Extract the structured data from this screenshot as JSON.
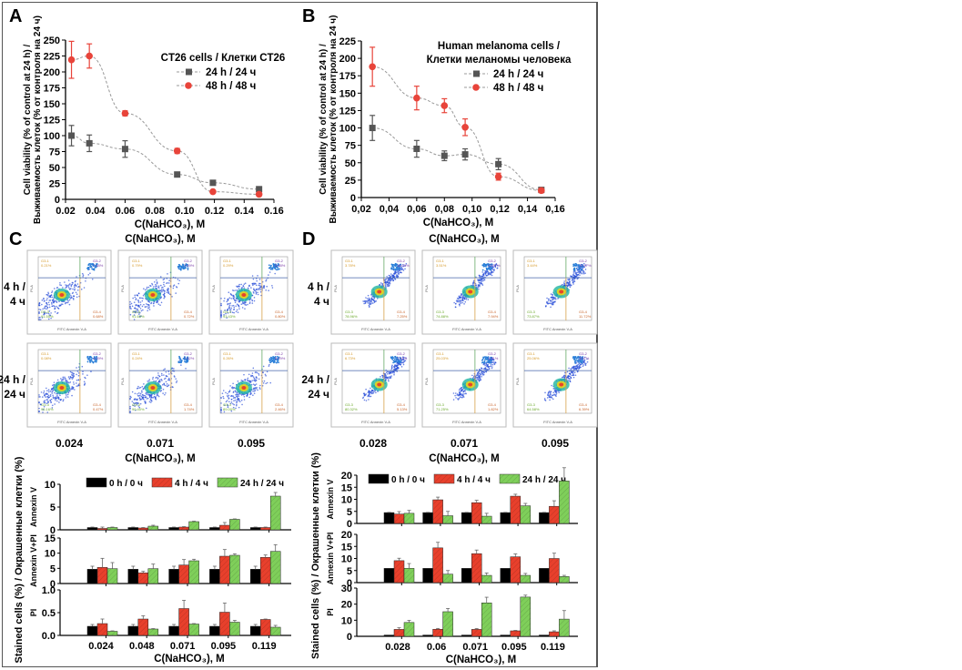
{
  "colors": {
    "series_24h": "#555555",
    "series_48h": "#e8443a",
    "bar_0h": "#000000",
    "bar_4h": "#e8402c",
    "bar_24h": "#7fcf5a",
    "frame": "#555555"
  },
  "chart_data": [
    {
      "id": "A",
      "panel": "A",
      "type": "line",
      "title": "CT26 cells / Клетки CT26",
      "xlabel": "C(NaHCO₃), M",
      "ylabel_line1": "Cell viability (% of control at 24 h) /",
      "ylabel_line2": "Выживаемость клеток (% от контроля на 24 ч)",
      "xlim": [
        0.02,
        0.16
      ],
      "ylim": [
        0,
        250
      ],
      "xticks": [
        0.02,
        0.04,
        0.06,
        0.08,
        0.1,
        0.12,
        0.14,
        0.16
      ],
      "xtick_labels": [
        "0.02",
        "0.04",
        "0.06",
        "0.08",
        "0.10",
        "0.12",
        "0.14",
        "0.16"
      ],
      "yticks": [
        0,
        25,
        50,
        75,
        100,
        125,
        150,
        175,
        200,
        225,
        250
      ],
      "legend_position": "top-right",
      "series": [
        {
          "name": "24 h / 24 ч",
          "marker": "square",
          "x": [
            0.024,
            0.036,
            0.06,
            0.095,
            0.119,
            0.15
          ],
          "y": [
            100,
            88,
            79,
            39,
            26,
            16
          ],
          "err": [
            16,
            13,
            13,
            2,
            2,
            3
          ]
        },
        {
          "name": "48 h / 48 ч",
          "marker": "circle",
          "x": [
            0.024,
            0.036,
            0.06,
            0.095,
            0.119,
            0.15
          ],
          "y": [
            219,
            225,
            135,
            76,
            12,
            8
          ],
          "err": [
            29,
            19,
            4,
            4,
            2,
            2
          ]
        }
      ]
    },
    {
      "id": "B",
      "panel": "B",
      "type": "line",
      "title": "Human melanoma cells /",
      "title2": "Клетки меланомы человека",
      "xlabel": "C(NaHCO₃), M",
      "ylabel_line1": "Cell viability (% of control at 24 h) /",
      "ylabel_line2": "Выживаемость клеток (% от контроля на 24 ч)",
      "xlim": [
        0.02,
        0.16
      ],
      "ylim": [
        0,
        225
      ],
      "xticks": [
        0.02,
        0.04,
        0.06,
        0.08,
        0.1,
        0.12,
        0.14,
        0.16
      ],
      "xtick_labels": [
        "0,02",
        "0,04",
        "0,06",
        "0,08",
        "0,10",
        "0,12",
        "0,14",
        "0,16"
      ],
      "yticks": [
        0,
        25,
        50,
        75,
        100,
        125,
        150,
        175,
        200,
        225
      ],
      "legend_position": "top-right",
      "series": [
        {
          "name": "24 h / 24 ч",
          "marker": "square",
          "x": [
            0.028,
            0.06,
            0.08,
            0.095,
            0.119,
            0.15
          ],
          "y": [
            100,
            70,
            60,
            62,
            48,
            11
          ],
          "err": [
            18,
            12,
            7,
            8,
            8,
            3
          ]
        },
        {
          "name": "48 h / 48 ч",
          "marker": "circle",
          "x": [
            0.028,
            0.06,
            0.08,
            0.095,
            0.119,
            0.15
          ],
          "y": [
            188,
            143,
            132,
            101,
            30,
            10
          ],
          "err": [
            28,
            17,
            10,
            12,
            5,
            3
          ]
        }
      ]
    },
    {
      "id": "E",
      "panel": "C-bars",
      "type": "bar",
      "xlabel": "C(NaHCO₃), M",
      "ylabel": "Stained cells (%) / Окрашенные клетки (%)",
      "categories": [
        "0.024",
        "0.048",
        "0.071",
        "0.095",
        "0.119"
      ],
      "legend": [
        "0 h / 0 ч",
        "4 h / 4 ч",
        "24 h / 24 ч"
      ],
      "legend_position": "top",
      "subplots": [
        {
          "label": "Annexin V",
          "ylim": [
            0,
            10
          ],
          "yticks": [
            0,
            5,
            10
          ],
          "series": [
            {
              "name": "0 h / 0 ч",
              "values": [
                0.5,
                0.5,
                0.5,
                0.5,
                0.5
              ],
              "err": [
                0.1,
                0.1,
                0.1,
                0.1,
                0.1
              ]
            },
            {
              "name": "4 h / 4 ч",
              "values": [
                0.3,
                0.4,
                0.6,
                1.0,
                0.5
              ],
              "err": [
                0.3,
                0.1,
                0.1,
                0.6,
                0.1
              ]
            },
            {
              "name": "24 h / 24 ч",
              "values": [
                0.5,
                0.8,
                1.8,
                2.3,
                7.4
              ],
              "err": [
                0.1,
                0.2,
                0.1,
                0.1,
                0.8
              ]
            }
          ]
        },
        {
          "label": "Annexin V+PI",
          "ylim": [
            0,
            15
          ],
          "yticks": [
            0,
            5,
            10,
            15
          ],
          "series": [
            {
              "name": "0 h / 0 ч",
              "values": [
                4.7,
                4.7,
                4.7,
                4.7,
                4.7
              ],
              "err": [
                1,
                1,
                1,
                1,
                1
              ]
            },
            {
              "name": "4 h / 4 ч",
              "values": [
                5.3,
                3.5,
                6.1,
                9.0,
                8.6
              ],
              "err": [
                3,
                0.5,
                1.8,
                2.2,
                0.8
              ]
            },
            {
              "name": "24 h / 24 ч",
              "values": [
                4.9,
                4.9,
                7.5,
                9.3,
                10.6
              ],
              "err": [
                2,
                1.5,
                0.5,
                0.5,
                2.2
              ]
            }
          ]
        },
        {
          "label": "PI",
          "ylim": [
            0,
            1.0
          ],
          "yticks": [
            0,
            0.5,
            1.0
          ],
          "ytick_labels": [
            "0.0",
            "0.5",
            "1.0"
          ],
          "series": [
            {
              "name": "0 h / 0 ч",
              "values": [
                0.2,
                0.2,
                0.2,
                0.2,
                0.2
              ],
              "err": [
                0.04,
                0.04,
                0.04,
                0.04,
                0.04
              ]
            },
            {
              "name": "4 h / 4 ч",
              "values": [
                0.26,
                0.36,
                0.59,
                0.51,
                0.35
              ],
              "err": [
                0.1,
                0.07,
                0.18,
                0.2,
                0.01
              ]
            },
            {
              "name": "24 h / 24 ч",
              "values": [
                0.09,
                0.14,
                0.25,
                0.29,
                0.18
              ],
              "err": [
                0.01,
                0.01,
                0.01,
                0.04,
                0.04
              ]
            }
          ]
        }
      ]
    },
    {
      "id": "F",
      "panel": "D-bars",
      "type": "bar",
      "xlabel": "C(NaHCO₃), M",
      "ylabel": "Stained cells (%) / Окрашенные клетки (%)",
      "categories": [
        "0.028",
        "0.06",
        "0.071",
        "0.095",
        "0.119"
      ],
      "legend": [
        "0 h / 0 ч",
        "4 h / 4 ч",
        "24 h / 24 ч"
      ],
      "legend_position": "top",
      "subplots": [
        {
          "label": "Annexin V",
          "ylim": [
            0,
            20
          ],
          "yticks": [
            0,
            5,
            10,
            15,
            20
          ],
          "series": [
            {
              "name": "0 h / 0 ч",
              "values": [
                4.5,
                4.5,
                4.5,
                4.5,
                4.5
              ],
              "err": [
                0.1,
                0.1,
                0.1,
                0.1,
                0.1
              ]
            },
            {
              "name": "4 h / 4 ч",
              "values": [
                3.9,
                9.8,
                8.6,
                11.3,
                7.1
              ],
              "err": [
                1,
                1.1,
                1,
                0.8,
                2.3
              ]
            },
            {
              "name": "24 h / 24 ч",
              "values": [
                4.2,
                3.2,
                3.0,
                7.3,
                17.6
              ],
              "err": [
                1.2,
                1.8,
                1.2,
                1,
                5.5
              ]
            }
          ]
        },
        {
          "label": "Annexin V+PI",
          "ylim": [
            0,
            20
          ],
          "yticks": [
            0,
            5,
            10,
            15,
            20
          ],
          "series": [
            {
              "name": "0 h / 0 ч",
              "values": [
                5.9,
                5.9,
                5.9,
                5.9,
                5.9
              ],
              "err": [
                0,
                0,
                0,
                0,
                0
              ]
            },
            {
              "name": "4 h / 4 ч",
              "values": [
                9.1,
                14.4,
                12.0,
                10.7,
                10.0
              ],
              "err": [
                1,
                2.3,
                1.5,
                1.2,
                2.2
              ]
            },
            {
              "name": "24 h / 24 ч",
              "values": [
                5.9,
                3.5,
                3.0,
                3.0,
                2.5
              ],
              "err": [
                2,
                1.5,
                1,
                0.8,
                0.5
              ]
            }
          ]
        },
        {
          "label": "PI",
          "ylim": [
            0,
            30
          ],
          "yticks": [
            0,
            10,
            20,
            30
          ],
          "series": [
            {
              "name": "0 h / 0 ч",
              "values": [
                0.8,
                0.8,
                0.8,
                0.8,
                0.8
              ],
              "err": [
                0,
                0,
                0,
                0,
                0
              ]
            },
            {
              "name": "4 h / 4 ч",
              "values": [
                4.3,
                4.4,
                4.3,
                3.4,
                2.8
              ],
              "err": [
                1,
                0.5,
                0.5,
                0.3,
                0.6
              ]
            },
            {
              "name": "24 h / 24 ч",
              "values": [
                8.6,
                15.3,
                20.8,
                24.4,
                10.7
              ],
              "err": [
                1.3,
                2,
                3.5,
                1.2,
                5.3
              ]
            }
          ]
        }
      ]
    }
  ],
  "flow": {
    "C": {
      "letter": "C",
      "xlabel": "C(NaHCO₃), M",
      "col_labels": [
        "0.024",
        "0.071",
        "0.095"
      ],
      "row_labels": [
        [
          "4 h /",
          "4 ч"
        ],
        [
          "24 h /",
          "24 ч"
        ]
      ],
      "axis_x_label": "FITC Annexin V-A",
      "axis_y_label": "PI-A",
      "quadrants": [
        [
          [
            "G3-1",
            "0.21%",
            "G3-2",
            "7.48%",
            "G3-3",
            "91.55%",
            "G3-4",
            "0.68%"
          ],
          [
            "G3-1",
            "0.79%",
            "G3-2",
            "7.59%",
            "G3-3",
            "91.63%",
            "G3-4",
            "0.72%"
          ],
          [
            "G3-1",
            "0.29%",
            "G3-2",
            "5.48%",
            "G3-3",
            "93.43%",
            "G3-4",
            "0.80%"
          ]
        ],
        [
          [
            "G3-1",
            "0.08%",
            "G3-2",
            "4.29%",
            "G3-3",
            "95.16%",
            "G3-4",
            "0.47%"
          ],
          [
            "G3-1",
            "0.24%",
            "G3-2",
            "7.62%",
            "G3-3",
            "90.40%",
            "G3-4",
            "1.74%"
          ],
          [
            "G3-1",
            "0.26%",
            "G3-2",
            "8.29%",
            "G3-3",
            "89.00%",
            "G3-4",
            "2.46%"
          ]
        ]
      ]
    },
    "D": {
      "letter": "D",
      "xlabel": "C(NaHCO₃), M",
      "col_labels": [
        "0.028",
        "0.071",
        "0.095"
      ],
      "row_labels": [
        [
          "4 h /",
          "4 ч"
        ],
        [
          "24 h /",
          "24 ч"
        ]
      ],
      "axis_x_label": "FITC Annexin V-A",
      "axis_y_label": "PI-A",
      "quadrants": [
        [
          [
            "G3-1",
            "3.78%",
            "G3-2",
            "10.00%",
            "G3-3",
            "78.96%",
            "G3-4",
            "7.25%"
          ],
          [
            "G3-1",
            "3.51%",
            "G3-2",
            "13.57%",
            "G3-3",
            "74.88%",
            "G3-4",
            "7.94%"
          ],
          [
            "G3-1",
            "3.44%",
            "G3-2",
            "10.87%",
            "G3-3",
            "73.87%",
            "G3-4",
            "11.72%"
          ]
        ],
        [
          [
            "G3-1",
            "6.73%",
            "G3-2",
            "7.42%",
            "G3-3",
            "80.32%",
            "G3-4",
            "5.13%"
          ],
          [
            "G3-1",
            "25.03%",
            "G3-2",
            "1.91%",
            "G3-3",
            "71.25%",
            "G3-4",
            "1.82%"
          ],
          [
            "G3-1",
            "25.06%",
            "G3-2",
            "3.07%",
            "G3-3",
            "64.58%",
            "G3-4",
            "6.39%"
          ]
        ]
      ]
    }
  }
}
